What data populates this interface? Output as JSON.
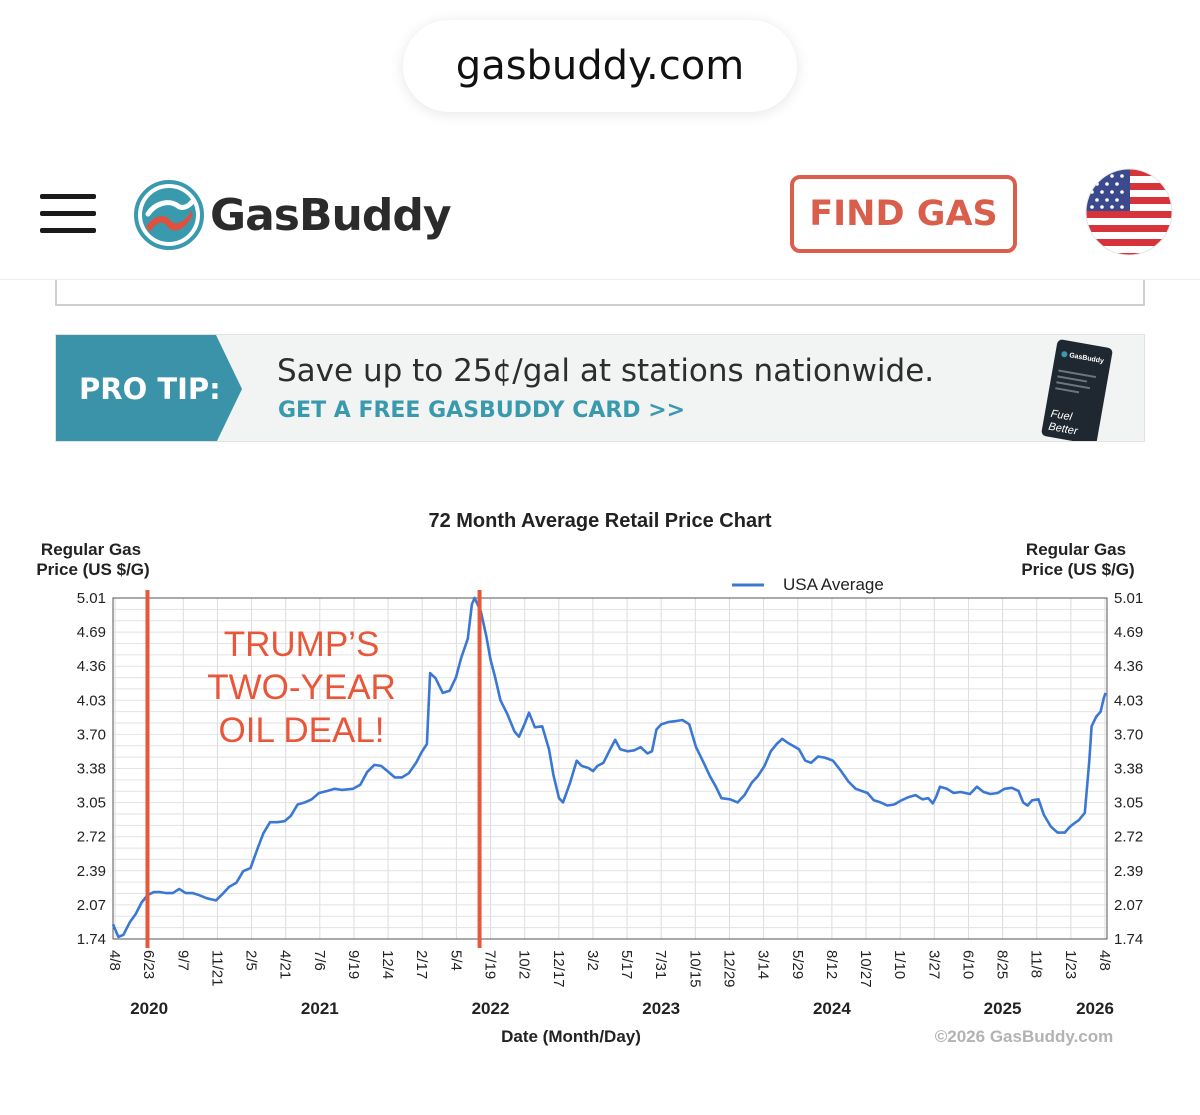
{
  "browser": {
    "url": "gasbuddy.com"
  },
  "header": {
    "logo_text": "GasBuddy",
    "find_gas_label": "FIND GAS",
    "menu_icon": "hamburger-menu-icon",
    "region_icon": "us-flag-icon"
  },
  "promo": {
    "tag": "PRO TIP:",
    "message": "Save up to 25¢/gal at stations nationwide.",
    "link": "GET A FREE GASBUDDY CARD >>",
    "card_brand": "GasBuddy",
    "card_tagline_1": "Fuel",
    "card_tagline_2": "Better"
  },
  "colors": {
    "brand_red": "#d95f4c",
    "teal": "#3a9aad",
    "series_blue": "#3a78d4",
    "annotation_red": "#e9573a"
  },
  "chart_data": {
    "type": "line",
    "title": "72 Month Average Retail Price Chart",
    "ylabel_left": [
      "Regular Gas",
      "Price (US $/G)"
    ],
    "ylabel_right": [
      "Regular Gas",
      "Price (US $/G)"
    ],
    "xlabel": "Date (Month/Day)",
    "copyright": "©2026 GasBuddy.com",
    "ylim": [
      1.74,
      5.01
    ],
    "xlim": [
      "2020-04-08",
      "2026-04-08"
    ],
    "y_ticks": [
      "5.01",
      "4.69",
      "4.36",
      "4.03",
      "3.70",
      "3.38",
      "3.05",
      "2.72",
      "2.39",
      "2.07",
      "1.74"
    ],
    "x_tick_labels": [
      "4/8",
      "6/23",
      "9/7",
      "11/21",
      "2/5",
      "4/21",
      "7/6",
      "9/19",
      "12/4",
      "2/17",
      "5/4",
      "7/19",
      "10/2",
      "12/17",
      "3/2",
      "5/17",
      "7/31",
      "10/15",
      "12/29",
      "3/14",
      "5/29",
      "8/12",
      "10/27",
      "1/10",
      "3/27",
      "6/10",
      "8/25",
      "11/8",
      "1/23",
      "4/8"
    ],
    "year_labels": [
      {
        "label": "2020",
        "tick": "6/23"
      },
      {
        "label": "2021",
        "tick": "7/6"
      },
      {
        "label": "2022",
        "tick": "7/19"
      },
      {
        "label": "2023",
        "tick": "7/31"
      },
      {
        "label": "2024",
        "tick": "8/12"
      },
      {
        "label": "2025",
        "tick": "8/25"
      },
      {
        "label": "2026",
        "tick": "4/8"
      }
    ],
    "grid": true,
    "legend": {
      "position": "top-right",
      "entries": [
        "USA Average"
      ]
    },
    "series": [
      {
        "name": "USA Average",
        "color": "#3a78d4",
        "points": [
          [
            "2020-04-08",
            1.88
          ],
          [
            "2020-04-20",
            1.76
          ],
          [
            "2020-05-01",
            1.78
          ],
          [
            "2020-05-15",
            1.9
          ],
          [
            "2020-05-28",
            1.98
          ],
          [
            "2020-06-10",
            2.09
          ],
          [
            "2020-06-23",
            2.16
          ],
          [
            "2020-07-07",
            2.19
          ],
          [
            "2020-07-21",
            2.19
          ],
          [
            "2020-08-04",
            2.18
          ],
          [
            "2020-08-18",
            2.18
          ],
          [
            "2020-09-01",
            2.22
          ],
          [
            "2020-09-15",
            2.18
          ],
          [
            "2020-10-01",
            2.18
          ],
          [
            "2020-10-15",
            2.16
          ],
          [
            "2020-11-01",
            2.13
          ],
          [
            "2020-11-21",
            2.11
          ],
          [
            "2020-12-05",
            2.17
          ],
          [
            "2020-12-20",
            2.24
          ],
          [
            "2021-01-05",
            2.28
          ],
          [
            "2021-01-20",
            2.39
          ],
          [
            "2021-02-05",
            2.42
          ],
          [
            "2021-02-20",
            2.6
          ],
          [
            "2021-03-05",
            2.75
          ],
          [
            "2021-03-20",
            2.86
          ],
          [
            "2021-04-05",
            2.86
          ],
          [
            "2021-04-21",
            2.87
          ],
          [
            "2021-05-05",
            2.92
          ],
          [
            "2021-05-20",
            3.03
          ],
          [
            "2021-06-05",
            3.05
          ],
          [
            "2021-06-20",
            3.08
          ],
          [
            "2021-07-06",
            3.14
          ],
          [
            "2021-07-25",
            3.16
          ],
          [
            "2021-08-10",
            3.18
          ],
          [
            "2021-08-25",
            3.17
          ],
          [
            "2021-09-19",
            3.18
          ],
          [
            "2021-10-05",
            3.22
          ],
          [
            "2021-10-20",
            3.34
          ],
          [
            "2021-11-05",
            3.41
          ],
          [
            "2021-11-20",
            3.4
          ],
          [
            "2021-12-04",
            3.35
          ],
          [
            "2021-12-20",
            3.29
          ],
          [
            "2022-01-05",
            3.29
          ],
          [
            "2022-01-20",
            3.33
          ],
          [
            "2022-02-05",
            3.43
          ],
          [
            "2022-02-17",
            3.53
          ],
          [
            "2022-03-01",
            3.61
          ],
          [
            "2022-03-08",
            4.29
          ],
          [
            "2022-03-20",
            4.24
          ],
          [
            "2022-04-05",
            4.1
          ],
          [
            "2022-04-20",
            4.12
          ],
          [
            "2022-05-04",
            4.25
          ],
          [
            "2022-05-15",
            4.43
          ],
          [
            "2022-05-30",
            4.62
          ],
          [
            "2022-06-08",
            4.95
          ],
          [
            "2022-06-14",
            5.01
          ],
          [
            "2022-06-28",
            4.88
          ],
          [
            "2022-07-10",
            4.64
          ],
          [
            "2022-07-19",
            4.42
          ],
          [
            "2022-07-30",
            4.24
          ],
          [
            "2022-08-10",
            4.03
          ],
          [
            "2022-08-25",
            3.9
          ],
          [
            "2022-09-10",
            3.73
          ],
          [
            "2022-09-20",
            3.68
          ],
          [
            "2022-10-02",
            3.8
          ],
          [
            "2022-10-12",
            3.91
          ],
          [
            "2022-10-25",
            3.77
          ],
          [
            "2022-11-10",
            3.78
          ],
          [
            "2022-11-25",
            3.56
          ],
          [
            "2022-12-05",
            3.31
          ],
          [
            "2022-12-17",
            3.09
          ],
          [
            "2022-12-26",
            3.05
          ],
          [
            "2023-01-10",
            3.23
          ],
          [
            "2023-01-25",
            3.45
          ],
          [
            "2023-02-05",
            3.4
          ],
          [
            "2023-02-20",
            3.38
          ],
          [
            "2023-03-02",
            3.35
          ],
          [
            "2023-03-12",
            3.4
          ],
          [
            "2023-03-25",
            3.43
          ],
          [
            "2023-04-10",
            3.57
          ],
          [
            "2023-04-20",
            3.65
          ],
          [
            "2023-05-01",
            3.56
          ],
          [
            "2023-05-17",
            3.54
          ],
          [
            "2023-06-01",
            3.55
          ],
          [
            "2023-06-15",
            3.58
          ],
          [
            "2023-06-30",
            3.52
          ],
          [
            "2023-07-10",
            3.54
          ],
          [
            "2023-07-20",
            3.75
          ],
          [
            "2023-07-31",
            3.8
          ],
          [
            "2023-08-15",
            3.82
          ],
          [
            "2023-08-31",
            3.83
          ],
          [
            "2023-09-15",
            3.84
          ],
          [
            "2023-09-30",
            3.8
          ],
          [
            "2023-10-15",
            3.58
          ],
          [
            "2023-11-01",
            3.43
          ],
          [
            "2023-11-15",
            3.3
          ],
          [
            "2023-11-28",
            3.2
          ],
          [
            "2023-12-10",
            3.09
          ],
          [
            "2023-12-29",
            3.08
          ],
          [
            "2024-01-15",
            3.05
          ],
          [
            "2024-01-30",
            3.12
          ],
          [
            "2024-02-15",
            3.24
          ],
          [
            "2024-02-28",
            3.3
          ],
          [
            "2024-03-14",
            3.4
          ],
          [
            "2024-03-28",
            3.54
          ],
          [
            "2024-04-10",
            3.61
          ],
          [
            "2024-04-22",
            3.66
          ],
          [
            "2024-05-05",
            3.62
          ],
          [
            "2024-05-29",
            3.56
          ],
          [
            "2024-06-12",
            3.45
          ],
          [
            "2024-06-25",
            3.43
          ],
          [
            "2024-07-10",
            3.49
          ],
          [
            "2024-07-25",
            3.48
          ],
          [
            "2024-08-12",
            3.45
          ],
          [
            "2024-08-30",
            3.35
          ],
          [
            "2024-09-15",
            3.25
          ],
          [
            "2024-10-01",
            3.18
          ],
          [
            "2024-10-27",
            3.14
          ],
          [
            "2024-11-10",
            3.07
          ],
          [
            "2024-11-25",
            3.05
          ],
          [
            "2024-12-10",
            3.02
          ],
          [
            "2024-12-25",
            3.03
          ],
          [
            "2025-01-10",
            3.07
          ],
          [
            "2025-01-25",
            3.1
          ],
          [
            "2025-02-10",
            3.12
          ],
          [
            "2025-02-25",
            3.08
          ],
          [
            "2025-03-10",
            3.09
          ],
          [
            "2025-03-20",
            3.04
          ],
          [
            "2025-03-27",
            3.1
          ],
          [
            "2025-04-05",
            3.2
          ],
          [
            "2025-04-20",
            3.18
          ],
          [
            "2025-05-05",
            3.14
          ],
          [
            "2025-05-20",
            3.15
          ],
          [
            "2025-06-10",
            3.13
          ],
          [
            "2025-06-25",
            3.2
          ],
          [
            "2025-07-10",
            3.15
          ],
          [
            "2025-07-25",
            3.13
          ],
          [
            "2025-08-10",
            3.14
          ],
          [
            "2025-08-25",
            3.18
          ],
          [
            "2025-09-10",
            3.19
          ],
          [
            "2025-09-25",
            3.16
          ],
          [
            "2025-10-05",
            3.05
          ],
          [
            "2025-10-15",
            3.02
          ],
          [
            "2025-10-25",
            3.07
          ],
          [
            "2025-11-08",
            3.08
          ],
          [
            "2025-11-20",
            2.93
          ],
          [
            "2025-12-05",
            2.82
          ],
          [
            "2025-12-20",
            2.76
          ],
          [
            "2026-01-05",
            2.76
          ],
          [
            "2026-01-15",
            2.81
          ],
          [
            "2026-01-23",
            2.84
          ],
          [
            "2026-02-05",
            2.88
          ],
          [
            "2026-02-18",
            2.95
          ],
          [
            "2026-02-28",
            3.45
          ],
          [
            "2026-03-05",
            3.78
          ],
          [
            "2026-03-15",
            3.87
          ],
          [
            "2026-03-25",
            3.92
          ],
          [
            "2026-04-01",
            4.05
          ],
          [
            "2026-04-05",
            4.1
          ]
        ]
      }
    ],
    "annotations": [
      {
        "type": "vline",
        "date": "2020-06-23",
        "color": "#e9573a"
      },
      {
        "type": "vline",
        "date": "2022-06-25",
        "color": "#e9573a"
      },
      {
        "type": "text",
        "lines": [
          "TRUMP’S",
          "TWO-YEAR",
          "OIL DEAL!"
        ],
        "color": "#e9573a"
      }
    ]
  }
}
